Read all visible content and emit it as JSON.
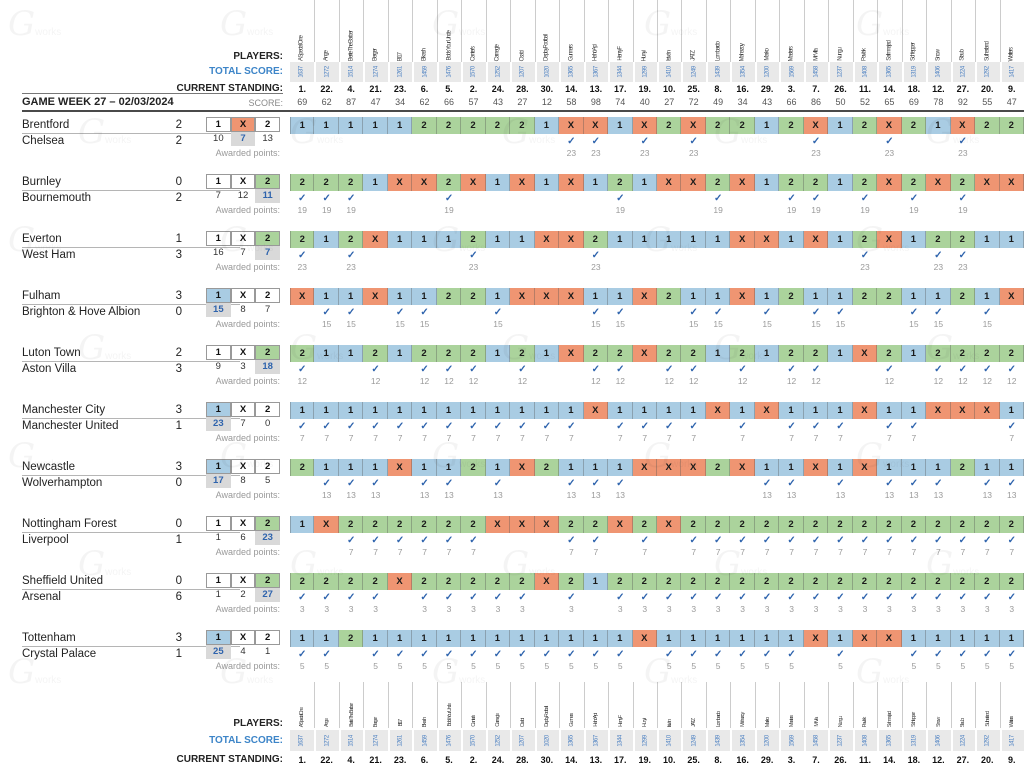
{
  "labels": {
    "players": "PLAYERS:",
    "total_score": "TOTAL SCORE:",
    "current_standing": "CURRENT STANDING:",
    "score": "SCORE:",
    "gameweek": "GAME WEEK 27 – 02/03/2024",
    "awarded_points": "Awarded points:"
  },
  "watermark": {
    "glyph": "G",
    "text": "works"
  },
  "colors": {
    "pick_home": "#a9cce3",
    "pick_draw": "#ef9572",
    "pick_away": "#abd39c",
    "band_gray": "#e9e9e9",
    "highlight_bg": "#d9d9d9",
    "accent_blue": "#3d85c8",
    "check_blue": "#2f64ad"
  },
  "players": [
    {
      "name": "A Special One",
      "total": 1637,
      "standing": "1.",
      "score": 69
    },
    {
      "name": "Ange",
      "total": 1272,
      "standing": "22.",
      "score": 62
    },
    {
      "name": "Bertie The Barber",
      "total": 1514,
      "standing": "4.",
      "score": 87
    },
    {
      "name": "Berger",
      "total": 1274,
      "standing": "21.",
      "score": 47
    },
    {
      "name": "BI17",
      "total": 1261,
      "standing": "23.",
      "score": 34
    },
    {
      "name": "Bikash",
      "total": 1459,
      "standing": "6.",
      "score": 62
    },
    {
      "name": "Bob's Your Uncle",
      "total": 1476,
      "standing": "5.",
      "score": 66
    },
    {
      "name": "Canter's",
      "total": 1570,
      "standing": "2.",
      "score": 57
    },
    {
      "name": "Carnegie",
      "total": 1252,
      "standing": "24.",
      "score": 43
    },
    {
      "name": "Csabi",
      "total": 1207,
      "standing": "28.",
      "score": 27
    },
    {
      "name": "DeployFootball",
      "total": 1020,
      "standing": "30.",
      "score": 12
    },
    {
      "name": "Gunners",
      "total": 1365,
      "standing": "14.",
      "score": 58
    },
    {
      "name": "HahóApi",
      "total": 1367,
      "standing": "13.",
      "score": 98
    },
    {
      "name": "HenryF",
      "total": 1344,
      "standing": "17.",
      "score": 74
    },
    {
      "name": "Hunyi",
      "total": 1299,
      "standing": "19.",
      "score": 40
    },
    {
      "name": "István",
      "total": 1410,
      "standing": "10.",
      "score": 27
    },
    {
      "name": "JATZ",
      "total": 1249,
      "standing": "25.",
      "score": 72
    },
    {
      "name": "Lombardo",
      "total": 1439,
      "standing": "8.",
      "score": 49
    },
    {
      "name": "Mahazoy",
      "total": 1354,
      "standing": "16.",
      "score": 34
    },
    {
      "name": "Marko",
      "total": 1200,
      "standing": "29.",
      "score": 43
    },
    {
      "name": "Masters",
      "total": 1569,
      "standing": "3.",
      "score": 66
    },
    {
      "name": "Mr Villa",
      "total": 1458,
      "standing": "7.",
      "score": 86
    },
    {
      "name": "Nungu",
      "total": 1237,
      "standing": "26.",
      "score": 50
    },
    {
      "name": "Pavlak",
      "total": 1408,
      "standing": "11.",
      "score": 52
    },
    {
      "name": "Salimnajad",
      "total": 1365,
      "standing": "14.",
      "score": 65
    },
    {
      "name": "Schlepper",
      "total": 1319,
      "standing": "18.",
      "score": 69
    },
    {
      "name": "Snow",
      "total": 1406,
      "standing": "12.",
      "score": 78
    },
    {
      "name": "Staub",
      "total": 1224,
      "standing": "27.",
      "score": 92
    },
    {
      "name": "Sutherland",
      "total": 1292,
      "standing": "20.",
      "score": 55
    },
    {
      "name": "Watters",
      "total": 1417,
      "standing": "9.",
      "score": 47
    }
  ],
  "matches": [
    {
      "home": "Brentford",
      "away": "Chelsea",
      "home_score": 2,
      "away_score": 2,
      "odds": [
        10,
        7,
        13
      ],
      "result": "X",
      "awarded": 23,
      "predictions": "11111222221XX1X2X2212X12X21X22"
    },
    {
      "home": "Burnley",
      "away": "Bournemouth",
      "home_score": 0,
      "away_score": 2,
      "odds": [
        7,
        12,
        11
      ],
      "result": "2",
      "awarded": 19,
      "predictions": "2221XX2X1X1X121XX2X12212X2X2XX"
    },
    {
      "home": "Everton",
      "away": "West Ham",
      "home_score": 1,
      "away_score": 3,
      "odds": [
        16,
        7,
        7
      ],
      "result": "2",
      "awarded": 23,
      "predictions": "212X111211XX211111XX1X12X12211"
    },
    {
      "home": "Fulham",
      "away": "Brighton & Hove Albion",
      "home_score": 3,
      "away_score": 0,
      "odds": [
        15,
        8,
        7
      ],
      "result": "1",
      "awarded": 15,
      "predictions": "X11X11221XXX11X211X1211221121X"
    },
    {
      "home": "Luton Town",
      "away": "Aston Villa",
      "home_score": 2,
      "away_score": 3,
      "odds": [
        9,
        3,
        18
      ],
      "result": "2",
      "awarded": 12,
      "predictions": "21121222121X22X22121221X212222"
    },
    {
      "home": "Manchester City",
      "away": "Manchester United",
      "home_score": 3,
      "away_score": 1,
      "odds": [
        23,
        7,
        0
      ],
      "result": "1",
      "awarded": 7,
      "predictions": "111111111111X1111X1X111X11XXX1"
    },
    {
      "home": "Newcastle",
      "away": "Wolverhampton",
      "home_score": 3,
      "away_score": 0,
      "odds": [
        17,
        8,
        5
      ],
      "result": "1",
      "awarded": 13,
      "predictions": "2111X1121X2111XXX2X11X1X111211"
    },
    {
      "home": "Nottingham Forest",
      "away": "Liverpool",
      "home_score": 0,
      "away_score": 1,
      "odds": [
        1,
        6,
        23
      ],
      "result": "2",
      "awarded": 7,
      "predictions": "1X222222XXX22X2X22222222222222"
    },
    {
      "home": "Sheffield United",
      "away": "Arsenal",
      "home_score": 0,
      "away_score": 6,
      "odds": [
        1,
        2,
        27
      ],
      "result": "2",
      "awarded": 3,
      "predictions": "2222X22222X2122222222222222222"
    },
    {
      "home": "Tottenham",
      "away": "Crystal Palace",
      "home_score": 3,
      "away_score": 1,
      "odds": [
        25,
        4,
        1
      ],
      "result": "1",
      "awarded": 5,
      "predictions": "11211111111111X111111X1XX11111"
    }
  ]
}
